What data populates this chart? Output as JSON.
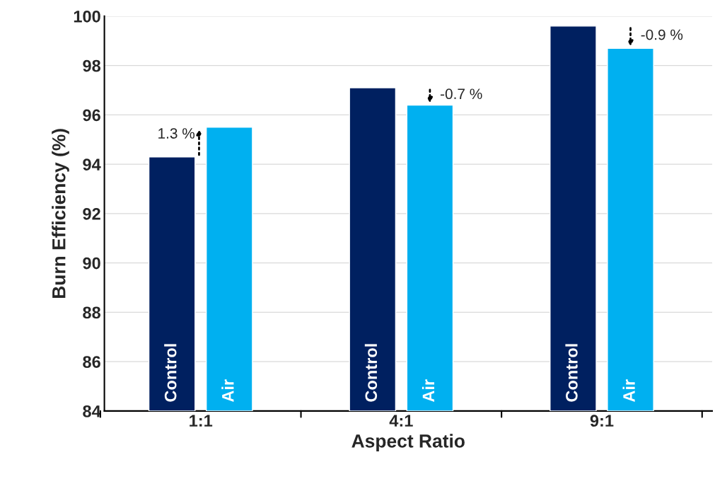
{
  "chart_data": {
    "type": "bar",
    "xlabel": "Aspect Ratio",
    "ylabel": "Burn Efficiency (%)",
    "categories": [
      "1:1",
      "4:1",
      "9:1"
    ],
    "series": [
      {
        "name": "Control",
        "color": "#002060",
        "values": [
          94.3,
          97.1,
          99.6
        ]
      },
      {
        "name": "Air",
        "color": "#00b0f0",
        "values": [
          95.5,
          96.4,
          98.7
        ]
      }
    ],
    "ylim": [
      84,
      100
    ],
    "yticks": [
      84,
      86,
      88,
      90,
      92,
      94,
      96,
      98,
      100
    ],
    "grid": "y",
    "legend": false,
    "annotations": [
      "1.3 %",
      "-0.7 %",
      "-0.9 %"
    ]
  }
}
